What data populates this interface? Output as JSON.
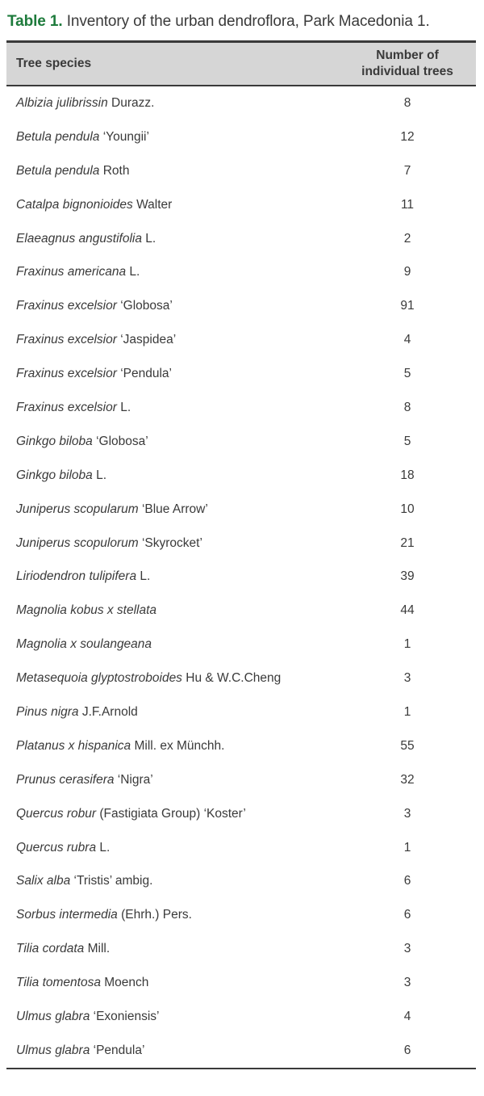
{
  "caption": {
    "label": "Table 1.",
    "text": "Inventory of the urban dendroflora, Park Macedonia 1."
  },
  "colors": {
    "caption_label_green": "#1e7b3c",
    "body_text": "#3a3a3a",
    "header_background": "#d6d6d6",
    "rule_border": "#3a3a3a"
  },
  "table": {
    "col1_header": "Tree species",
    "col2_header": "Number of individual trees",
    "rows": [
      {
        "species_italic": "Albizia julibrissin",
        "species_rest": "Durazz.",
        "count": "8"
      },
      {
        "species_italic": "Betula pendula",
        "species_rest": "‘Youngii’",
        "count": "12"
      },
      {
        "species_italic": "Betula pendula",
        "species_rest": "Roth",
        "count": "7"
      },
      {
        "species_italic": "Catalpa bignonioides",
        "species_rest": "Walter",
        "count": "11"
      },
      {
        "species_italic": "Elaeagnus angustifolia",
        "species_rest": "L.",
        "count": "2"
      },
      {
        "species_italic": "Fraxinus americana",
        "species_rest": "L.",
        "count": "9"
      },
      {
        "species_italic": "Fraxinus excelsior",
        "species_rest": "‘Globosa’",
        "count": "91"
      },
      {
        "species_italic": "Fraxinus excelsior",
        "species_rest": "‘Jaspidea’",
        "count": "4"
      },
      {
        "species_italic": "Fraxinus excelsior",
        "species_rest": "‘Pendula’",
        "count": "5"
      },
      {
        "species_italic": "Fraxinus excelsior",
        "species_rest": "L.",
        "count": "8"
      },
      {
        "species_italic": "Ginkgo biloba",
        "species_rest": "‘Globosa’",
        "count": "5"
      },
      {
        "species_italic": "Ginkgo biloba",
        "species_rest": "L.",
        "count": "18"
      },
      {
        "species_italic": "Juniperus scopularum",
        "species_rest": "‘Blue Arrow’",
        "count": "10"
      },
      {
        "species_italic": "Juniperus scopulorum",
        "species_rest": "‘Skyrocket’",
        "count": "21"
      },
      {
        "species_italic": "Liriodendron tulipifera",
        "species_rest": "L.",
        "count": "39"
      },
      {
        "species_italic": "Magnolia kobus x stellata",
        "species_rest": "",
        "count": "44"
      },
      {
        "species_italic": "Magnolia x soulangeana",
        "species_rest": "",
        "count": "1"
      },
      {
        "species_italic": "Metasequoia glyptostroboides",
        "species_rest": "Hu & W.C.Cheng",
        "count": "3"
      },
      {
        "species_italic": "Pinus nigra",
        "species_rest": "J.F.Arnold",
        "count": "1"
      },
      {
        "species_italic": "Platanus x hispanica",
        "species_rest": "Mill. ex Münchh.",
        "count": "55"
      },
      {
        "species_italic": "Prunus cerasifera",
        "species_rest": "‘Nigra’",
        "count": "32"
      },
      {
        "species_italic": "Quercus robur",
        "species_rest": "(Fastigiata Group) ‘Koster’",
        "count": "3"
      },
      {
        "species_italic": "Quercus rubra",
        "species_rest": "L.",
        "count": "1"
      },
      {
        "species_italic": "Salix alba",
        "species_rest": "‘Tristis’ ambig.",
        "count": "6"
      },
      {
        "species_italic": "Sorbus intermedia",
        "species_rest": "(Ehrh.) Pers.",
        "count": "6"
      },
      {
        "species_italic": "Tilia cordata",
        "species_rest": "Mill.",
        "count": "3"
      },
      {
        "species_italic": "Tilia tomentosa",
        "species_rest": "Moench",
        "count": "3"
      },
      {
        "species_italic": "Ulmus glabra",
        "species_rest": "‘Exoniensis’",
        "count": "4"
      },
      {
        "species_italic": "Ulmus glabra",
        "species_rest": "‘Pendula’",
        "count": "6"
      }
    ]
  }
}
